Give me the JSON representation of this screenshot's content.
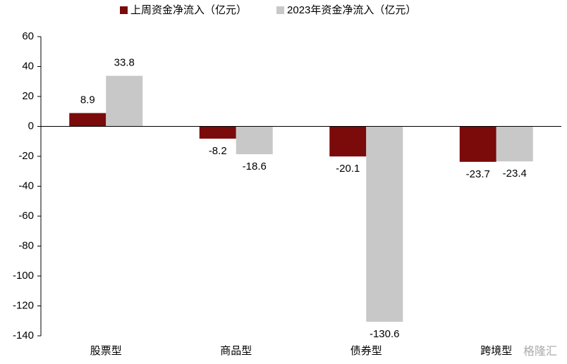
{
  "chart_data": {
    "type": "bar",
    "categories": [
      "股票型",
      "商品型",
      "债券型",
      "跨境型"
    ],
    "series": [
      {
        "name": "上周资金净流入（亿元）",
        "color": "#7b0a0a",
        "values": [
          8.9,
          -8.2,
          -20.1,
          -23.7
        ]
      },
      {
        "name": "2023年资金净流入（亿元）",
        "color": "#c8c8c8",
        "values": [
          33.8,
          -18.6,
          -130.6,
          -23.4
        ]
      }
    ],
    "ylim": [
      -140,
      60
    ],
    "yticks": [
      -140,
      -120,
      -100,
      -80,
      -60,
      -40,
      -20,
      0,
      20,
      40,
      60
    ],
    "legend": "top",
    "watermark": "格隆汇"
  }
}
